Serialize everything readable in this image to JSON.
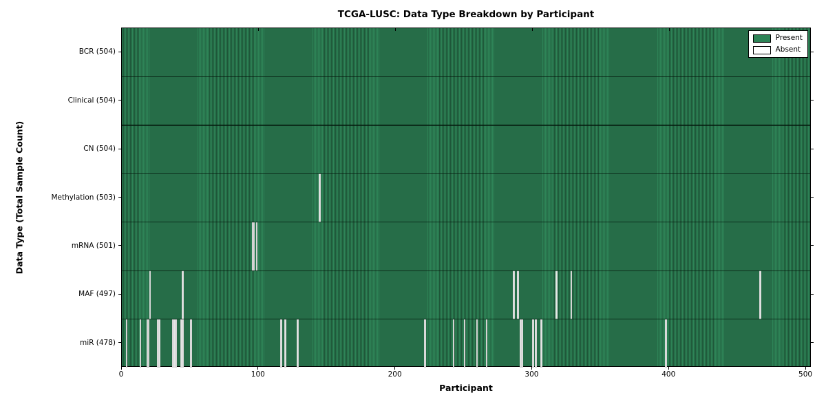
{
  "chart_data": {
    "type": "heatmap",
    "title": "TCGA-LUSC: Data Type Breakdown by Participant",
    "xlabel": "Participant",
    "ylabel": "Data Type (Total Sample Count)",
    "x_ticks": [
      0,
      100,
      200,
      300,
      400,
      500
    ],
    "x_range": [
      0,
      504
    ],
    "n_participants": 504,
    "grid": false,
    "legend_position": "upper right",
    "legend": [
      {
        "label": "Present",
        "color": "#2e8457"
      },
      {
        "label": "Absent",
        "color": "#ffffff"
      }
    ],
    "colors": {
      "present": "#2e8457",
      "present_edge": "#1e5638",
      "absent": "#e6e6e6",
      "row_boundary": "rgba(4,24,12,0.75)"
    },
    "rows": [
      {
        "label": "BCR (504)",
        "name": "BCR",
        "total": 504,
        "absent": []
      },
      {
        "label": "Clinical (504)",
        "name": "Clinical",
        "total": 504,
        "absent": []
      },
      {
        "label": "CN (504)",
        "name": "CN",
        "total": 504,
        "absent": []
      },
      {
        "label": "Methylation (503)",
        "name": "Methylation",
        "total": 503,
        "absent": [
          144
        ]
      },
      {
        "label": "mRNA (501)",
        "name": "mRNA",
        "total": 501,
        "absent": [
          95,
          96,
          98
        ]
      },
      {
        "label": "MAF (497)",
        "name": "MAF",
        "total": 497,
        "absent": [
          20,
          44,
          286,
          289,
          317,
          328,
          466
        ]
      },
      {
        "label": "miR (478)",
        "name": "miR",
        "total": 478,
        "absent": [
          3,
          13,
          18,
          19,
          26,
          27,
          37,
          38,
          39,
          43,
          44,
          50,
          116,
          119,
          128,
          221,
          242,
          250,
          259,
          266,
          291,
          292,
          300,
          302,
          306,
          397
        ]
      }
    ]
  }
}
